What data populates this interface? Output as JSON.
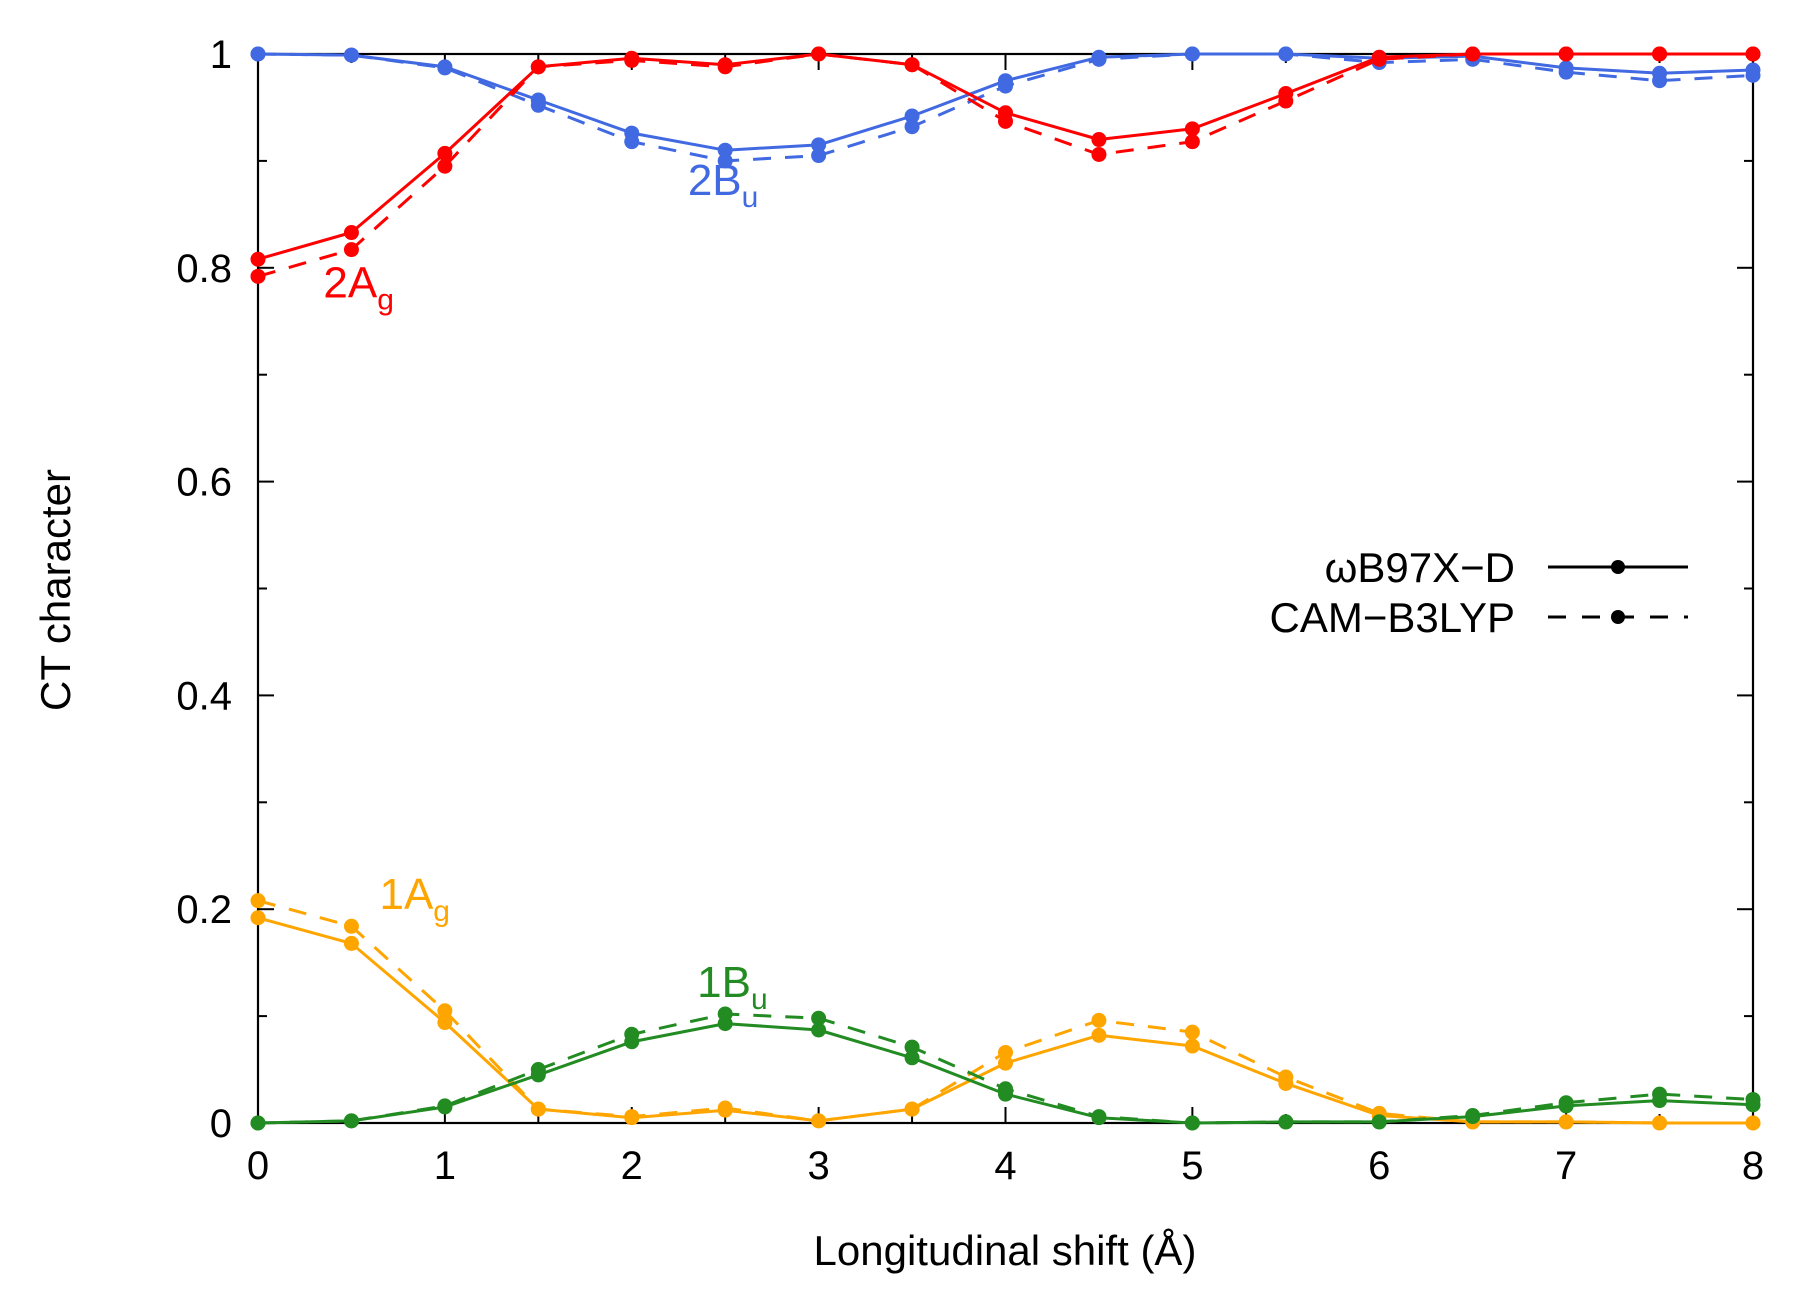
{
  "chart_data": {
    "type": "line",
    "xlabel": "Longitudinal shift (Å)",
    "ylabel": "CT character",
    "xlim": [
      0,
      8
    ],
    "ylim": [
      0,
      1
    ],
    "x_ticks": [
      "0",
      "1",
      "2",
      "3",
      "4",
      "5",
      "6",
      "7",
      "8"
    ],
    "y_ticks": [
      "0",
      "0.2",
      "0.4",
      "0.6",
      "0.8",
      "1"
    ],
    "x": [
      0,
      0.5,
      1,
      1.5,
      2,
      2.5,
      3,
      3.5,
      4,
      4.5,
      5,
      5.5,
      6,
      6.5,
      7,
      7.5,
      8
    ],
    "legend": [
      {
        "name": "ωB97X−D",
        "style": "solid"
      },
      {
        "name": "CAM−B3LYP",
        "style": "dashed"
      }
    ],
    "series": [
      {
        "state": "2Bu",
        "method": "ωB97X−D",
        "style": "solid",
        "color": "#4169e1",
        "values": [
          1.0,
          0.999,
          0.988,
          0.957,
          0.926,
          0.91,
          0.915,
          0.942,
          0.975,
          0.997,
          1.0,
          1.0,
          0.996,
          0.998,
          0.987,
          0.982,
          0.985
        ]
      },
      {
        "state": "2Bu",
        "method": "CAM−B3LYP",
        "style": "dashed",
        "color": "#4169e1",
        "values": [
          1.0,
          0.999,
          0.987,
          0.952,
          0.918,
          0.9,
          0.905,
          0.932,
          0.97,
          0.995,
          1.0,
          1.0,
          0.992,
          0.995,
          0.983,
          0.975,
          0.98
        ]
      },
      {
        "state": "2Ag",
        "method": "ωB97X−D",
        "style": "solid",
        "color": "#ff0000",
        "values": [
          0.808,
          0.833,
          0.907,
          0.988,
          0.996,
          0.99,
          1.0,
          0.99,
          0.945,
          0.92,
          0.93,
          0.963,
          0.997,
          1.0,
          1.0,
          1.0,
          1.0
        ]
      },
      {
        "state": "2Ag",
        "method": "CAM−B3LYP",
        "style": "dashed",
        "color": "#ff0000",
        "values": [
          0.792,
          0.817,
          0.895,
          0.988,
          0.994,
          0.988,
          1.0,
          0.99,
          0.937,
          0.906,
          0.918,
          0.956,
          0.995,
          1.0,
          1.0,
          1.0,
          1.0
        ]
      },
      {
        "state": "1Ag",
        "method": "ωB97X−D",
        "style": "solid",
        "color": "#ffa500",
        "values": [
          0.192,
          0.168,
          0.094,
          0.013,
          0.005,
          0.012,
          0.002,
          0.013,
          0.056,
          0.082,
          0.072,
          0.037,
          0.007,
          0.001,
          0.001,
          0.0,
          0.0
        ]
      },
      {
        "state": "1Ag",
        "method": "CAM−B3LYP",
        "style": "dashed",
        "color": "#ffa500",
        "values": [
          0.208,
          0.184,
          0.105,
          0.013,
          0.006,
          0.014,
          0.002,
          0.013,
          0.066,
          0.096,
          0.085,
          0.043,
          0.009,
          0.001,
          0.001,
          0.0,
          0.0
        ]
      },
      {
        "state": "1Bu",
        "method": "ωB97X−D",
        "style": "solid",
        "color": "#228b22",
        "values": [
          0.0,
          0.002,
          0.015,
          0.045,
          0.076,
          0.093,
          0.087,
          0.061,
          0.027,
          0.005,
          0.0,
          0.001,
          0.001,
          0.006,
          0.016,
          0.021,
          0.017
        ]
      },
      {
        "state": "1Bu",
        "method": "CAM−B3LYP",
        "style": "dashed",
        "color": "#228b22",
        "values": [
          0.0,
          0.002,
          0.016,
          0.05,
          0.083,
          0.102,
          0.098,
          0.071,
          0.032,
          0.006,
          0.0,
          0.001,
          0.001,
          0.007,
          0.019,
          0.027,
          0.022
        ]
      }
    ],
    "series_labels": [
      {
        "main": "2B",
        "sub": "u",
        "color": "#4169e1",
        "x": 2.3,
        "y": 0.868
      },
      {
        "main": "2A",
        "sub": "g",
        "color": "#ff0000",
        "x": 0.35,
        "y": 0.772
      },
      {
        "main": "1A",
        "sub": "g",
        "color": "#ffa500",
        "x": 0.65,
        "y": 0.2
      },
      {
        "main": "1B",
        "sub": "u",
        "color": "#228b22",
        "x": 2.35,
        "y": 0.118
      }
    ]
  }
}
